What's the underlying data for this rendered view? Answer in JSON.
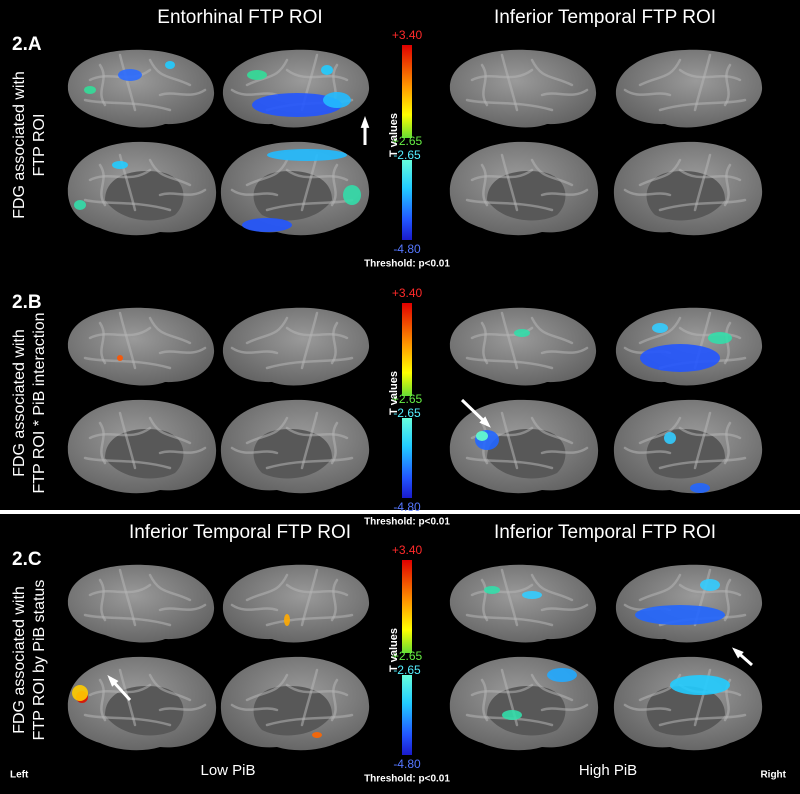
{
  "panels": [
    {
      "label": "2.A",
      "row_label": [
        "FDG associated with",
        "FTP ROI"
      ],
      "columns": [
        "Entorhinal FTP ROI",
        "Inferior Temporal FTP ROI"
      ],
      "colorbar": {
        "max": "+3.40",
        "pos_threshold": "+2.65",
        "neg_threshold": "-2.65",
        "min": "-4.80",
        "axis_label": "T values",
        "threshold": "Threshold: p<0.01"
      }
    },
    {
      "label": "2.B",
      "row_label": [
        "FDG associated with",
        "FTP ROI * PiB interaction"
      ],
      "colorbar": {
        "max": "+3.40",
        "pos_threshold": "+2.65",
        "neg_threshold": "-2.65",
        "min": "-4.80",
        "axis_label": "T values",
        "threshold": "Threshold: p<0.01"
      }
    },
    {
      "label": "2.C",
      "row_label": [
        "FDG associated with",
        "FTP ROI by PiB status"
      ],
      "columns": [
        "Inferior Temporal FTP ROI",
        "Inferior Temporal FTP ROI"
      ],
      "groups": [
        "Low PiB",
        "High PiB"
      ],
      "colorbar": {
        "max": "+3.40",
        "pos_threshold": "+2.65",
        "neg_threshold": "-2.65",
        "min": "-4.80",
        "axis_label": "T values",
        "threshold": "Threshold: p<0.01"
      },
      "hemispheres": [
        "Left",
        "Right"
      ]
    }
  ]
}
